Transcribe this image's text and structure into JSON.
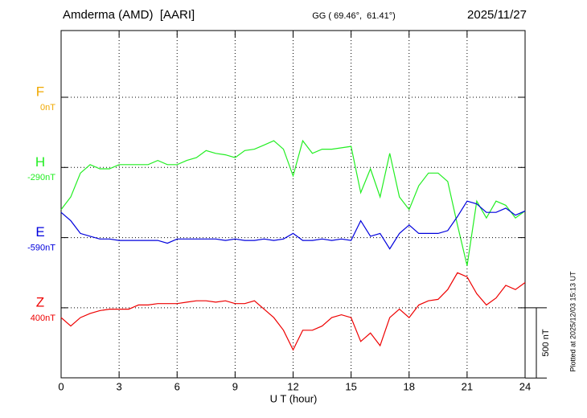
{
  "chart_data": {
    "type": "stackplot",
    "title": "Amderma (AMD)  [AARI]",
    "subtitle": "GG ( 69.46°,  61.41°)",
    "date": "2025/11/27",
    "x_label": "U T (hour)",
    "footnote": "Plotted at 2025/12/03 15:13 UT",
    "xlim": [
      0,
      24
    ],
    "xticks": [
      0,
      3,
      6,
      9,
      12,
      15,
      18,
      21,
      24
    ],
    "scale_bar": {
      "value": 500,
      "label": "500 nT"
    },
    "grid": true,
    "x": [
      0,
      0.5,
      1,
      1.5,
      2,
      2.5,
      3,
      3.5,
      4,
      4.5,
      5,
      5.5,
      6,
      6.5,
      7,
      7.5,
      8,
      8.5,
      9,
      9.5,
      10,
      10.5,
      11,
      11.5,
      12,
      12.5,
      13,
      13.5,
      14,
      14.5,
      15,
      15.5,
      16,
      16.5,
      17,
      17.5,
      18,
      18.5,
      19,
      19.5,
      20,
      20.5,
      21,
      21.5,
      22,
      22.5,
      23,
      23.5,
      24
    ],
    "series": [
      {
        "name": "F",
        "baseline_label": "0nT",
        "color": "#f0a800"
      },
      {
        "name": "H",
        "baseline_label": "-290nT",
        "color": "#22ee22",
        "values": [
          -300,
          -210,
          -40,
          20,
          -10,
          -10,
          20,
          20,
          20,
          20,
          50,
          20,
          20,
          50,
          70,
          120,
          100,
          90,
          70,
          120,
          130,
          160,
          190,
          130,
          -60,
          190,
          100,
          130,
          130,
          140,
          150,
          -180,
          -10,
          -210,
          100,
          -210,
          -300,
          -130,
          -40,
          -40,
          -100,
          -410,
          -700,
          -240,
          -360,
          -240,
          -270,
          -360,
          -310
        ]
      },
      {
        "name": "E",
        "baseline_label": "-590nT",
        "color": "#0000dd",
        "values": [
          180,
          120,
          30,
          10,
          -10,
          -10,
          -20,
          -20,
          -20,
          -20,
          -20,
          -40,
          -10,
          -10,
          -10,
          -10,
          -10,
          -20,
          -10,
          -20,
          -20,
          -10,
          -20,
          -10,
          30,
          -20,
          -20,
          -10,
          -20,
          -10,
          -20,
          120,
          10,
          30,
          -80,
          30,
          90,
          30,
          30,
          30,
          50,
          150,
          260,
          240,
          180,
          180,
          210,
          160,
          190
        ]
      },
      {
        "name": "Z",
        "baseline_label": "400nT",
        "color": "#ee0000",
        "values": [
          -70,
          -130,
          -70,
          -40,
          -20,
          -10,
          -10,
          -10,
          20,
          20,
          30,
          30,
          30,
          40,
          50,
          50,
          40,
          50,
          30,
          30,
          50,
          -10,
          -70,
          -160,
          -300,
          -160,
          -160,
          -130,
          -70,
          -50,
          -70,
          -240,
          -180,
          -270,
          -70,
          -10,
          -70,
          20,
          50,
          60,
          130,
          250,
          220,
          100,
          20,
          70,
          160,
          130,
          180
        ]
      }
    ]
  }
}
